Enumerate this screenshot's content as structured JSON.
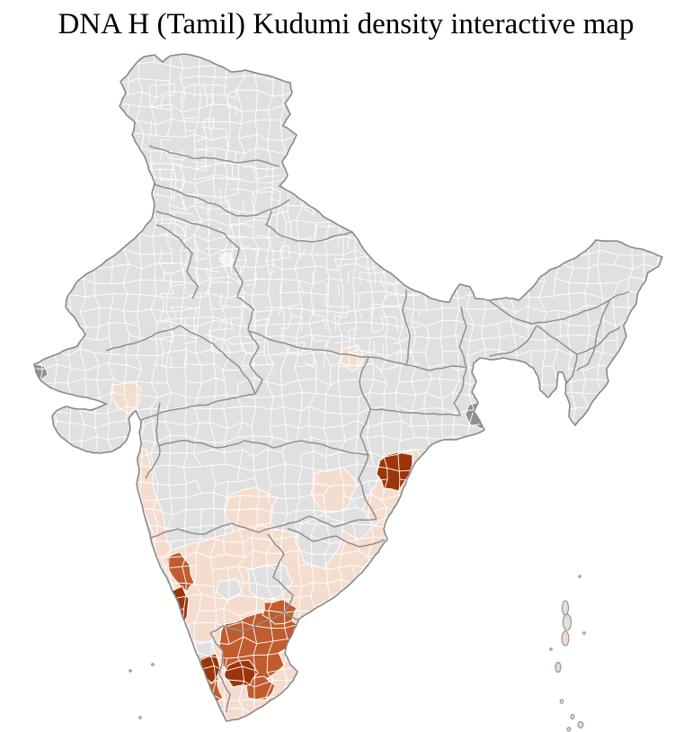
{
  "title": "DNA H (Tamil) Kudumi density interactive map",
  "map": {
    "background_color": "#ffffff",
    "land_color": "#e0e0e0",
    "district_border_color": "#ffffff",
    "state_border_color": "#8f8f8f",
    "coastline_color": "#888888",
    "density_levels": {
      "none": "#e0e0e0",
      "trace": "#f9efe7",
      "low": "#f4ddcf",
      "medium": "#c05c2e",
      "high": "#9c3509",
      "other": "#909090"
    },
    "regions": [
      {
        "name": "konkan-coast",
        "level": "low"
      },
      {
        "name": "south-gujarat",
        "level": "low"
      },
      {
        "name": "marathwada",
        "level": "low"
      },
      {
        "name": "north-telangana",
        "level": "low"
      },
      {
        "name": "coastal-andhra-odisha",
        "level": "low"
      },
      {
        "name": "south-uttar-pradesh",
        "level": "low"
      },
      {
        "name": "chandigarh-area",
        "level": "trace"
      },
      {
        "name": "peninsular-south",
        "level": "low"
      },
      {
        "name": "rayalaseema-gap",
        "level": "none"
      },
      {
        "name": "north-tamil-gap",
        "level": "none"
      },
      {
        "name": "bangalore-gap",
        "level": "none"
      },
      {
        "name": "wayanad-gap",
        "level": "none"
      },
      {
        "name": "coastal-karnataka",
        "level": "medium"
      },
      {
        "name": "central-tamil-nadu",
        "level": "medium"
      },
      {
        "name": "northeast-tamil-coast",
        "level": "medium"
      },
      {
        "name": "central-kerala",
        "level": "medium"
      },
      {
        "name": "south-tamil-nadu",
        "level": "medium"
      },
      {
        "name": "udupi-coast",
        "level": "high"
      },
      {
        "name": "palakkad-kerala",
        "level": "high"
      },
      {
        "name": "madurai-region",
        "level": "high"
      },
      {
        "name": "ganjam-odisha",
        "level": "high"
      },
      {
        "name": "sundarbans",
        "level": "other"
      },
      {
        "name": "kutch-west-tip",
        "level": "other"
      }
    ]
  }
}
